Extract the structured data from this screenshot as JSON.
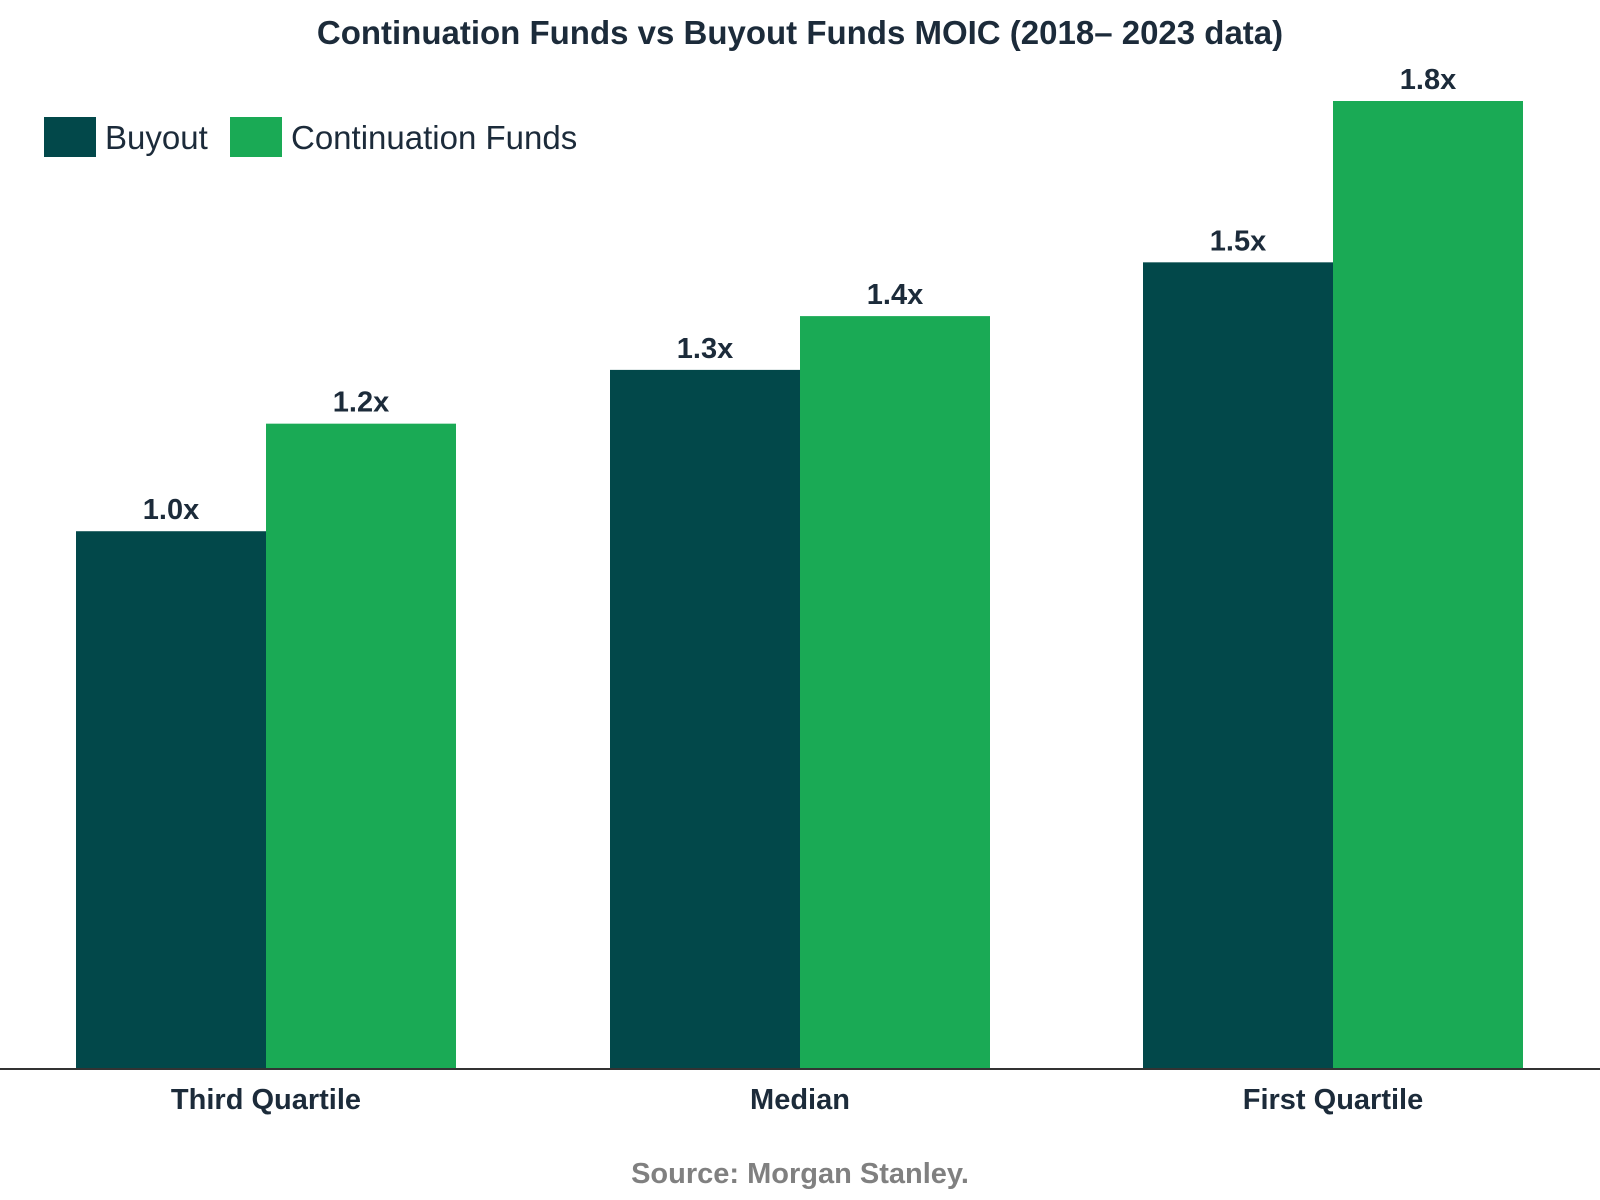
{
  "chart_data": {
    "type": "bar",
    "title": "Continuation Funds vs Buyout Funds MOIC (2018– 2023 data)",
    "categories": [
      "Third Quartile",
      "Median",
      "First Quartile"
    ],
    "series": [
      {
        "name": "Buyout",
        "color": "#02484a",
        "values": [
          1.0,
          1.3,
          1.5
        ],
        "labels": [
          "1.0x",
          "1.3x",
          "1.5x"
        ]
      },
      {
        "name": "Continuation Funds",
        "color": "#1aaa55",
        "values": [
          1.2,
          1.4,
          1.8
        ],
        "labels": [
          "1.2x",
          "1.4x",
          "1.8x"
        ]
      }
    ],
    "xlabel": "",
    "ylabel": "",
    "ylim": [
      0,
      1.8
    ],
    "grid": false,
    "legend": "top-left",
    "source": "Source: Morgan Stanley."
  }
}
